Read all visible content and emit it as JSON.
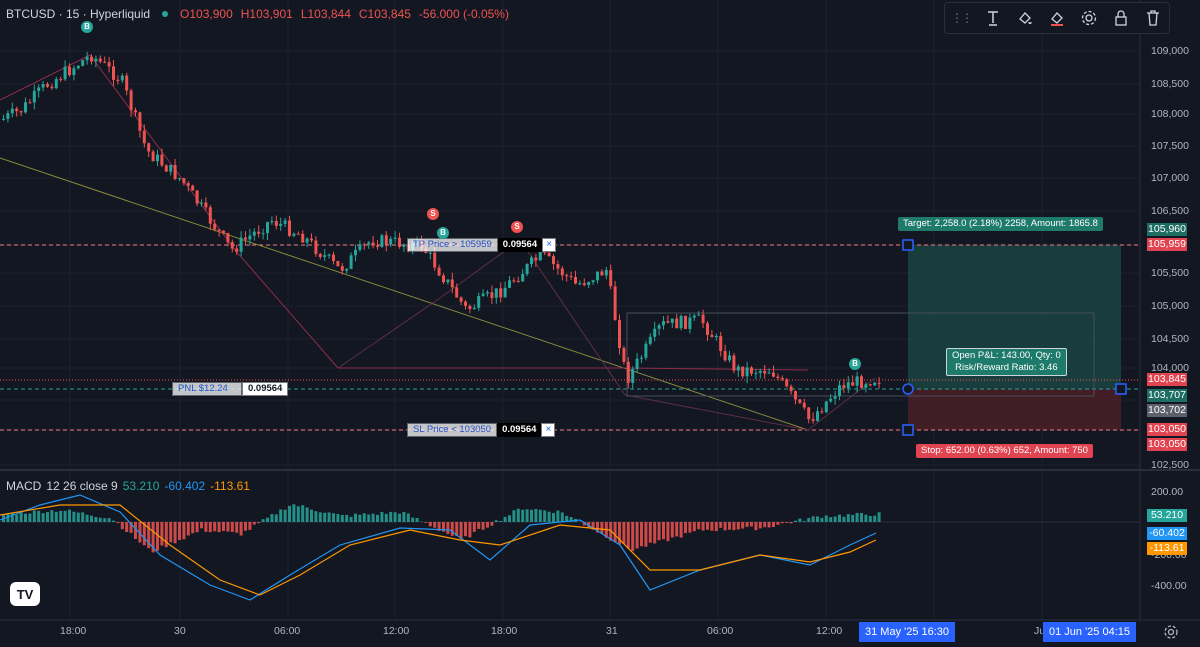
{
  "header": {
    "symbol": "BTCUSD · 15 · Hyperliquid",
    "o": "O103,900",
    "h": "H103,901",
    "l": "L103,844",
    "c": "C103,845",
    "chg": "-56.000 (-0.05%)"
  },
  "toolbar": {
    "icons": [
      "drag-handle-icon",
      "text-tool-icon",
      "fill-icon",
      "line-color-icon",
      "settings-icon",
      "lock-icon",
      "delete-icon"
    ]
  },
  "axis": {
    "prices": [
      "109,000",
      "108,500",
      "108,000",
      "107,500",
      "107,000",
      "106,500",
      "105,500",
      "105,000",
      "104,500",
      "104,000",
      "102,500"
    ],
    "macd": [
      "200.00",
      "-200.00",
      "-400.00"
    ]
  },
  "tags": {
    "t1": "105,960",
    "t2": "105,959",
    "t3": "103,845",
    "t4": "103,707",
    "t5": "103,702",
    "t6": "103,050",
    "t7": "103,050",
    "m1": "53.210",
    "m2": "-60.402",
    "m3": "-113.61"
  },
  "position": {
    "target": "Target: 2,258.0 (2.18%) 2258, Amount: 1865.8",
    "open_line1": "Open P&L: 143.00, Qty: 0",
    "open_line2": "Risk/Reward Ratio: 3.46",
    "stop": "Stop: 652.00 (0.63%) 652, Amount: 750"
  },
  "orders": {
    "tp_label": "TP Price > 105959",
    "tp_val": "0.09564",
    "pnl_label": "PNL $12.24",
    "pnl_val": "0.09564",
    "sl_label": "SL Price < 103050",
    "sl_val": "0.09564",
    "close": "×"
  },
  "markers": {
    "buy": "B",
    "sell": "S"
  },
  "macd": {
    "title": "MACD",
    "params": "12 26 close 9",
    "v1": "53.210",
    "v2": "-60.402",
    "v3": "-113.61"
  },
  "time": {
    "t1": "18:00",
    "t2": "30",
    "t3": "06:00",
    "t4": "12:00",
    "t5": "18:00",
    "t6": "31",
    "t7": "06:00",
    "t8": "12:00",
    "t9": "Ju",
    "cursor1": "31 May '25   16:30",
    "cursor2": "01 Jun '25   04:15"
  },
  "colors": {
    "up": "#26a69a",
    "down": "#ef5350",
    "accent": "#2962ff",
    "bg": "#131722"
  },
  "logo": "TV",
  "settings_icon": "gear-icon"
}
